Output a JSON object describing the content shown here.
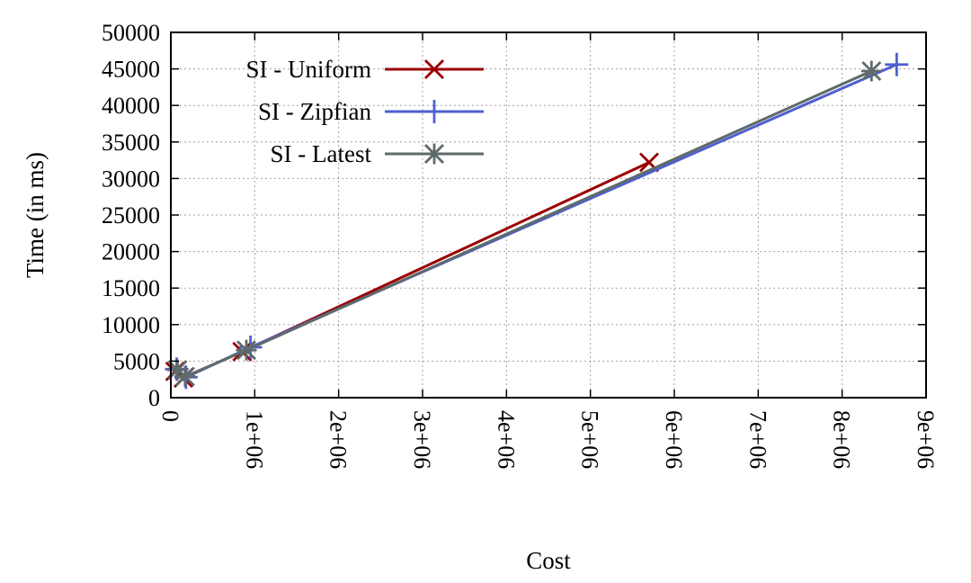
{
  "chart_data": {
    "type": "line",
    "title": "",
    "xlabel": "Cost",
    "ylabel": "Time (in ms)",
    "xlim": [
      0,
      9000000
    ],
    "ylim": [
      0,
      50000
    ],
    "grid": true,
    "legend_position": "top-left",
    "x_ticks": [
      0,
      1000000,
      2000000,
      3000000,
      4000000,
      5000000,
      6000000,
      7000000,
      8000000,
      9000000
    ],
    "x_tick_labels": [
      "0",
      "1e+06",
      "2e+06",
      "3e+06",
      "4e+06",
      "5e+06",
      "6e+06",
      "7e+06",
      "8e+06",
      "9e+06"
    ],
    "y_ticks": [
      0,
      5000,
      10000,
      15000,
      20000,
      25000,
      30000,
      35000,
      40000,
      45000,
      50000
    ],
    "y_tick_labels": [
      "0",
      "5000",
      "10000",
      "15000",
      "20000",
      "25000",
      "30000",
      "35000",
      "40000",
      "45000",
      "50000"
    ],
    "series": [
      {
        "name": "SI - Uniform",
        "color": "#9b0000",
        "marker": "x",
        "points": [
          [
            50000,
            3600
          ],
          [
            150000,
            2700
          ],
          [
            850000,
            6300
          ],
          [
            5700000,
            32200
          ]
        ]
      },
      {
        "name": "SI - Zipfian",
        "color": "#4f5fd0",
        "marker": "plus",
        "points": [
          [
            70000,
            3900
          ],
          [
            180000,
            2800
          ],
          [
            950000,
            6900
          ],
          [
            8650000,
            45600
          ]
        ]
      },
      {
        "name": "SI - Latest",
        "color": "#5f6a6a",
        "marker": "star",
        "points": [
          [
            80000,
            3800
          ],
          [
            170000,
            2900
          ],
          [
            900000,
            6500
          ],
          [
            8350000,
            44700
          ]
        ]
      }
    ]
  }
}
